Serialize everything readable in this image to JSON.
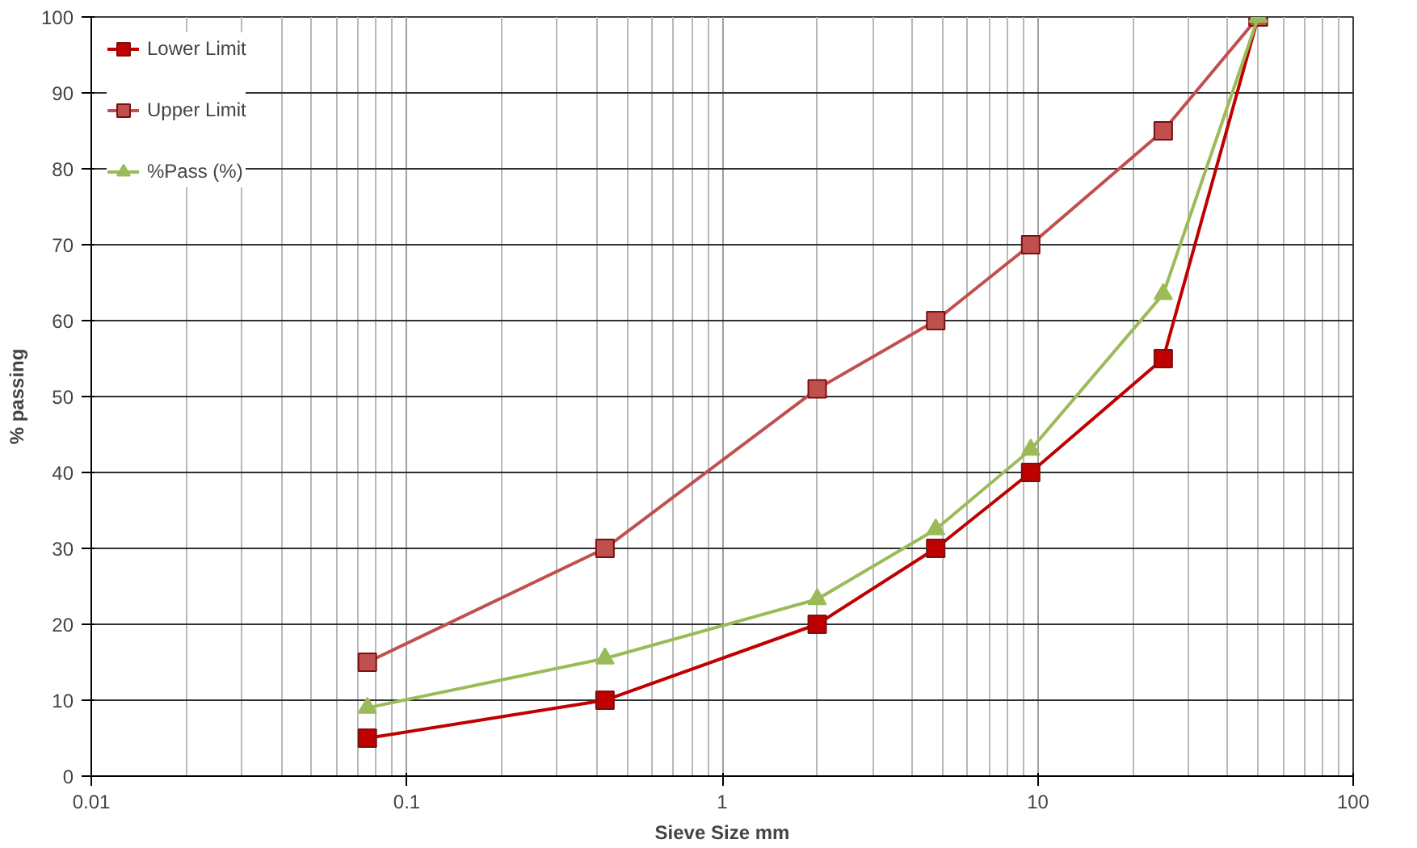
{
  "chart_data": {
    "type": "line",
    "xlabel": "Sieve Size mm",
    "ylabel": "% passing",
    "log": "x",
    "grid": true,
    "legend": "top left",
    "xlim": [
      0.01,
      100
    ],
    "ylim": [
      0,
      100
    ],
    "xticks": [
      0.01,
      0.1,
      1,
      10,
      100
    ],
    "yticks": [
      0,
      10,
      20,
      30,
      40,
      50,
      60,
      70,
      80,
      90,
      100
    ],
    "x": [
      0.075,
      0.425,
      2,
      4.75,
      9.5,
      25,
      50
    ],
    "series": [
      {
        "name": "Lower Limit",
        "color": "#c00000",
        "marker": "square",
        "values": [
          5,
          10,
          20,
          30,
          40,
          55,
          100
        ]
      },
      {
        "name": "Upper Limit",
        "color": "#c0504d",
        "marker": "square",
        "values": [
          15,
          30,
          51,
          60,
          70,
          85,
          100
        ]
      },
      {
        "name": "%Pass (%)",
        "color": "#9bbb59",
        "marker": "triangle",
        "values": [
          9,
          15.5,
          23.3,
          32.5,
          43,
          63.5,
          100
        ]
      }
    ]
  }
}
